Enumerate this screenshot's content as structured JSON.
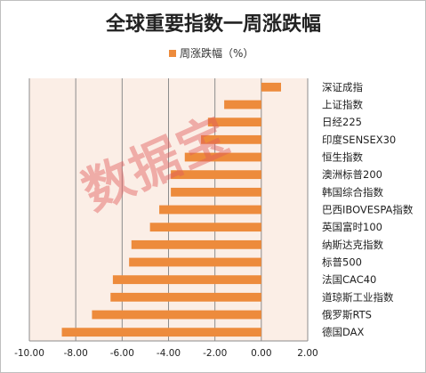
{
  "chart_data": {
    "type": "bar",
    "orientation": "horizontal",
    "title": "全球重要指数一周涨跌幅",
    "categories": [
      "深证成指",
      "上证指数",
      "日经225",
      "印度SENSEX30",
      "恒生指数",
      "澳洲标普200",
      "韩国综合指数",
      "巴西IBOVESPA指数",
      "英国富时100",
      "纳斯达克指数",
      "标普500",
      "法国CAC40",
      "道琼斯工业指数",
      "俄罗斯RTS",
      "德国DAX"
    ],
    "series": [
      {
        "name": "周涨跌幅（%）",
        "values": [
          0.85,
          -1.6,
          -2.3,
          -2.6,
          -3.3,
          -3.9,
          -3.9,
          -4.4,
          -4.8,
          -5.6,
          -5.7,
          -6.4,
          -6.5,
          -7.3,
          -8.6
        ]
      }
    ],
    "xlim": [
      -10,
      2
    ],
    "x_ticks": [
      "-10.00",
      "-8.00",
      "-6.00",
      "-4.00",
      "-2.00",
      "0.00",
      "2.00"
    ],
    "grid": "vertical",
    "legend": "top-center",
    "bar_color": "#ED8B3C",
    "plot_background": "#FBEEE6",
    "watermark": "数据宝"
  }
}
